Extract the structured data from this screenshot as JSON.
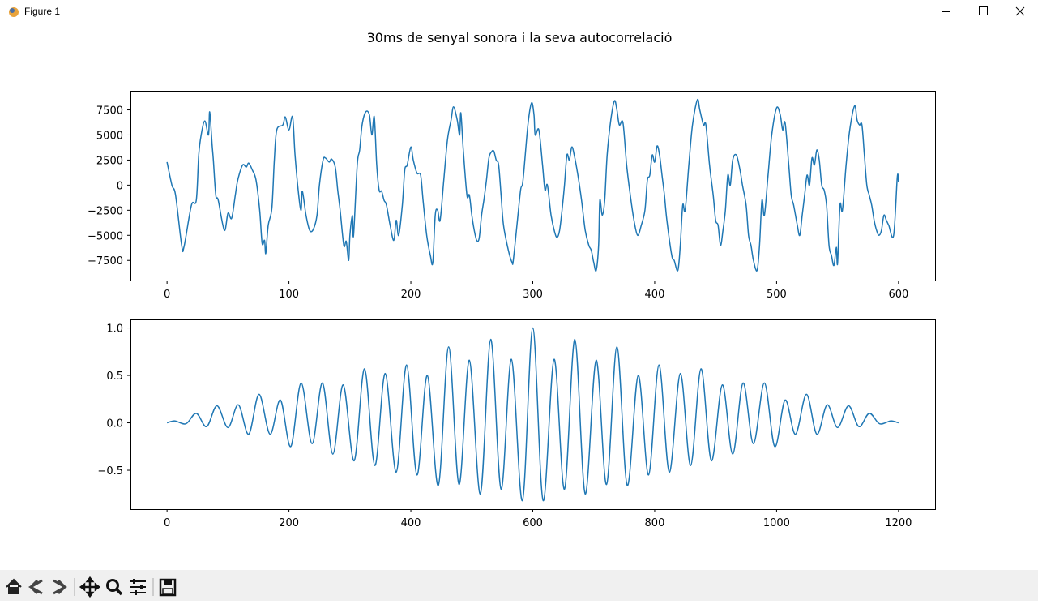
{
  "window": {
    "title": "Figure 1"
  },
  "figure_title": "30ms de senyal sonora i la seva autocorrelació",
  "chart_data": [
    {
      "type": "line",
      "color": "#1f77b4",
      "x": [
        0,
        4,
        7,
        12,
        14,
        20,
        24,
        26,
        28,
        31,
        34,
        35,
        37,
        38,
        40,
        42,
        47,
        50,
        53,
        56,
        58,
        62,
        65,
        67,
        70,
        73,
        76,
        78,
        80,
        81,
        83,
        86,
        88,
        90,
        95,
        97,
        100,
        103,
        105,
        108,
        110,
        111,
        114,
        117,
        120,
        123,
        125,
        128,
        130,
        133,
        135,
        138,
        140,
        142,
        145,
        147,
        149,
        150,
        152,
        153,
        156,
        158,
        160,
        163,
        166,
        168,
        170,
        172,
        174,
        176,
        178,
        180,
        183,
        186,
        188,
        190,
        193,
        195,
        197,
        200,
        202,
        205,
        208,
        210,
        213,
        216,
        218,
        220,
        222,
        224,
        227,
        230,
        233,
        235,
        238,
        240,
        241,
        243,
        246,
        248,
        250,
        252,
        254,
        256,
        258,
        260,
        262,
        264,
        266,
        268,
        270,
        272,
        274,
        276,
        280,
        283,
        284,
        287,
        290,
        292,
        296,
        299,
        301,
        302,
        305,
        308,
        310,
        312,
        315,
        318,
        320,
        322,
        324,
        326,
        328,
        330,
        332,
        334,
        337,
        340,
        343,
        346,
        348,
        350,
        352,
        354,
        355,
        357,
        359,
        361,
        364,
        367,
        369,
        371,
        374,
        377,
        380,
        383,
        386,
        389,
        392,
        394,
        396,
        398,
        400,
        402,
        404,
        406,
        408,
        410,
        414,
        416,
        419,
        421,
        423,
        425,
        428,
        431,
        435,
        437,
        440,
        442,
        445,
        448,
        450,
        452,
        454,
        456,
        458,
        460,
        462,
        464,
        467,
        470,
        472,
        475,
        477,
        479,
        481,
        484,
        486,
        488,
        490,
        493,
        496,
        500,
        503,
        505,
        507,
        510,
        512,
        514,
        517,
        519,
        521,
        523,
        525,
        527,
        529,
        531,
        533,
        535,
        537,
        539,
        541,
        543,
        545,
        547,
        549,
        550,
        552,
        554,
        557,
        560,
        564,
        566,
        568,
        570,
        572,
        574,
        576,
        578,
        580,
        582,
        584,
        586,
        588,
        590,
        592,
        596,
        599,
        600
      ],
      "values": [
        2300,
        0,
        -1000,
        -6000,
        -6100,
        -2000,
        -1500,
        3000,
        5000,
        6400,
        5000,
        7300,
        4000,
        2500,
        -1000,
        -1500,
        -4500,
        -2800,
        -3300,
        -1000,
        500,
        2000,
        1800,
        2200,
        1500,
        500,
        -2500,
        -5800,
        -5500,
        -6800,
        -4000,
        -2300,
        2500,
        5500,
        6000,
        6800,
        5500,
        6800,
        3000,
        -1000,
        -2500,
        -600,
        -3000,
        -4500,
        -4400,
        -3000,
        0,
        2500,
        2700,
        2300,
        2600,
        1800,
        -500,
        -2500,
        -6000,
        -5600,
        -7500,
        -5000,
        -3000,
        -5000,
        2000,
        3500,
        6000,
        7300,
        7000,
        5000,
        6800,
        2000,
        -500,
        -600,
        -1500,
        -2000,
        -4000,
        -5500,
        -3500,
        -5000,
        -2000,
        1500,
        2000,
        3800,
        2500,
        1200,
        1000,
        -1500,
        -5000,
        -7000,
        -7700,
        -3000,
        -2500,
        -3500,
        500,
        4500,
        6500,
        7800,
        6500,
        5000,
        7200,
        3500,
        -1000,
        -1000,
        -3000,
        -4500,
        -5500,
        -5300,
        -3000,
        -1400,
        500,
        2700,
        3300,
        3400,
        2500,
        2000,
        -1000,
        -4000,
        -6500,
        -7700,
        -7500,
        -4000,
        -500,
        500,
        6000,
        8200,
        7000,
        5000,
        5500,
        2000,
        -500,
        0,
        -3000,
        -4700,
        -5200,
        -4500,
        -2500,
        0,
        3000,
        2500,
        3800,
        3000,
        1000,
        -1500,
        -4500,
        -6000,
        -6500,
        -7700,
        -8500,
        -6000,
        -1500,
        -3000,
        -1500,
        3000,
        6500,
        8400,
        7500,
        6000,
        6200,
        2000,
        -1000,
        -3500,
        -5000,
        -4000,
        -2500,
        500,
        1000,
        3000,
        2300,
        3900,
        3000,
        1000,
        -1000,
        -3500,
        -7000,
        -7500,
        -8500,
        -6000,
        -2000,
        -2500,
        2000,
        6000,
        8500,
        7500,
        6000,
        6000,
        2000,
        -1000,
        -3500,
        -4000,
        -6000,
        -4500,
        -2500,
        1000,
        0,
        2500,
        3000,
        1500,
        0,
        -2000,
        -5000,
        -6000,
        -7500,
        -8500,
        -6000,
        -1500,
        -3000,
        1000,
        5000,
        7700,
        7000,
        5500,
        6200,
        2000,
        -1000,
        -2000,
        -4000,
        -5000,
        -3000,
        -1000,
        1000,
        0,
        2700,
        2000,
        3500,
        2500,
        0,
        -500,
        -2000,
        -6000,
        -7000,
        -8000,
        -6200,
        -7800,
        -2000,
        -2500,
        2000,
        5500,
        7900,
        6500,
        6000,
        6000,
        3000,
        0,
        -1000,
        -2000,
        -3500,
        -4500,
        -5000,
        -4500,
        -3000,
        -3500,
        -4000,
        -5000,
        800,
        300
      ],
      "xlim": [
        -30,
        630
      ],
      "ylim": [
        -9500,
        9400
      ],
      "xticks": [
        0,
        100,
        200,
        300,
        400,
        500,
        600
      ],
      "yticks": [
        {
          "value": -7500,
          "label": "−7500"
        },
        {
          "value": -5000,
          "label": "−5000"
        },
        {
          "value": -2500,
          "label": "−2500"
        },
        0,
        2500,
        5000,
        7500
      ]
    },
    {
      "type": "line",
      "color": "#1f77b4",
      "x": [
        0,
        13,
        31,
        48,
        65,
        82,
        100,
        117,
        134,
        151,
        169,
        186,
        203,
        220,
        238,
        255,
        272,
        289,
        307,
        324,
        341,
        358,
        376,
        393,
        410,
        427,
        445,
        462,
        479,
        496,
        514,
        531,
        548,
        565,
        583,
        600,
        617,
        635,
        652,
        669,
        686,
        704,
        721,
        738,
        755,
        773,
        790,
        807,
        824,
        842,
        859,
        876,
        893,
        911,
        928,
        945,
        962,
        980,
        997,
        1014,
        1031,
        1049,
        1066,
        1083,
        1100,
        1118,
        1135,
        1152,
        1169,
        1187,
        1200
      ],
      "values": [
        0,
        0.02,
        -0.01,
        0.1,
        -0.04,
        0.18,
        -0.05,
        0.19,
        -0.12,
        0.3,
        -0.12,
        0.24,
        -0.25,
        0.42,
        -0.22,
        0.42,
        -0.33,
        0.4,
        -0.4,
        0.57,
        -0.45,
        0.52,
        -0.52,
        0.61,
        -0.55,
        0.5,
        -0.66,
        0.8,
        -0.65,
        0.66,
        -0.75,
        0.88,
        -0.7,
        0.67,
        -0.82,
        1.0,
        -0.82,
        0.67,
        -0.7,
        0.88,
        -0.75,
        0.66,
        -0.65,
        0.8,
        -0.66,
        0.5,
        -0.55,
        0.61,
        -0.52,
        0.52,
        -0.45,
        0.57,
        -0.4,
        0.4,
        -0.33,
        0.42,
        -0.22,
        0.42,
        -0.25,
        0.24,
        -0.12,
        0.3,
        -0.12,
        0.19,
        -0.05,
        0.18,
        -0.04,
        0.1,
        -0.01,
        0.02,
        0
      ],
      "xlim": [
        -60,
        1260
      ],
      "ylim": [
        -0.91,
        1.09
      ],
      "xticks": [
        0,
        200,
        400,
        600,
        800,
        1000,
        1200
      ],
      "yticks": [
        {
          "value": -0.5,
          "label": "−0.5"
        },
        {
          "value": 0,
          "label": "0.0"
        },
        {
          "value": 0.5,
          "label": "0.5"
        },
        {
          "value": 1,
          "label": "1.0"
        }
      ]
    }
  ]
}
